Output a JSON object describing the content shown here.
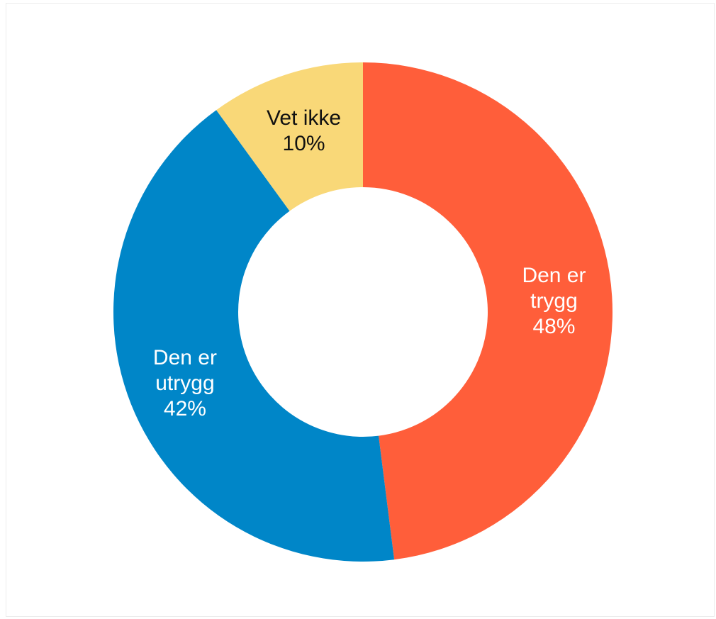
{
  "chart_data": {
    "type": "pie",
    "donut": true,
    "title": "",
    "slices": [
      {
        "name": "Den er trygg",
        "label_lines": [
          "Den er",
          "trygg"
        ],
        "value": 48,
        "value_label": "48%",
        "color": "#ff5e3a",
        "text_color": "#ffffff"
      },
      {
        "name": "Den er utrygg",
        "label_lines": [
          "Den er",
          "utrygg"
        ],
        "value": 42,
        "value_label": "42%",
        "color": "#0086c8",
        "text_color": "#ffffff"
      },
      {
        "name": "Vet ikke",
        "label_lines": [
          "Vet ikke"
        ],
        "value": 10,
        "value_label": "10%",
        "color": "#f9d878",
        "text_color": "#111111"
      }
    ],
    "start_angle_deg": 0,
    "direction": "clockwise",
    "legend": "none"
  }
}
